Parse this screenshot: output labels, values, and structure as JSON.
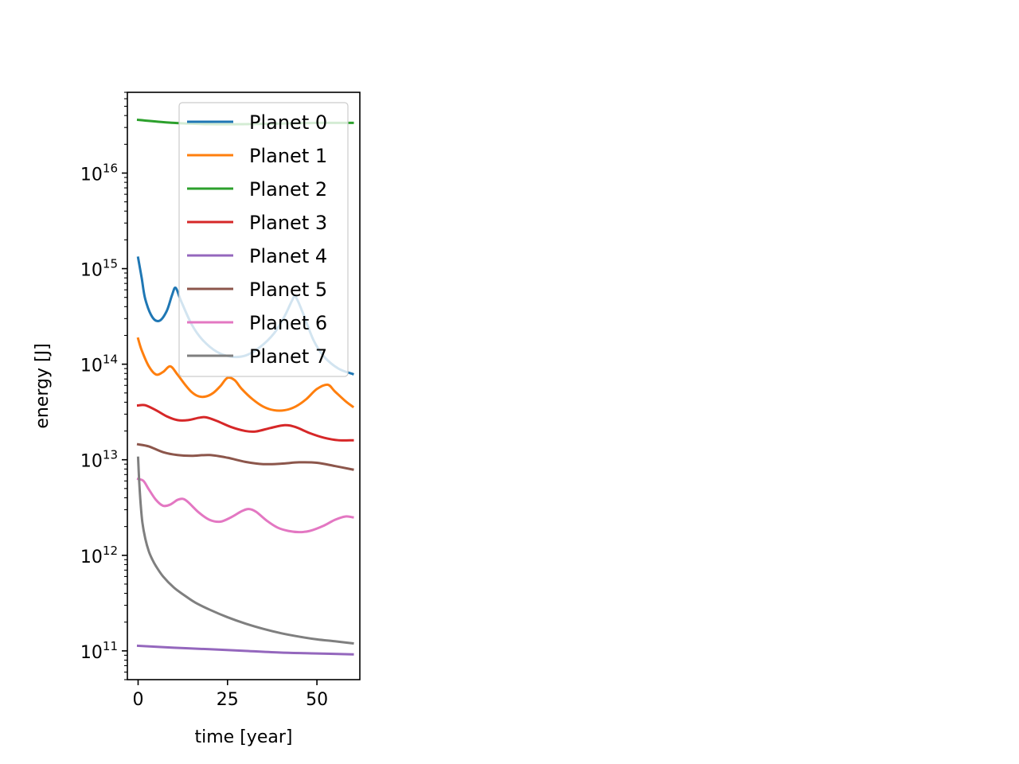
{
  "chart_data": {
    "type": "line",
    "xlabel": "time [year]",
    "ylabel": "energy [J]",
    "xlim": [
      -3,
      62
    ],
    "ylim": [
      50000000000.0,
      7e+16
    ],
    "yscale": "log",
    "x_ticks": [
      0,
      25,
      50
    ],
    "y_ticks": [
      {
        "value": 100000000000.0,
        "base": "10",
        "exp": "11"
      },
      {
        "value": 1000000000000.0,
        "base": "10",
        "exp": "12"
      },
      {
        "value": 10000000000000.0,
        "base": "10",
        "exp": "13"
      },
      {
        "value": 100000000000000.0,
        "base": "10",
        "exp": "14"
      },
      {
        "value": 1000000000000000.0,
        "base": "10",
        "exp": "15"
      },
      {
        "value": 1e+16,
        "base": "10",
        "exp": "16"
      }
    ],
    "grid": false,
    "legend_position": "top-right",
    "series": [
      {
        "name": "Planet 0",
        "color": "#1f77b4",
        "points": [
          [
            0,
            1300000000000000.0
          ],
          [
            1,
            800000000000000.0
          ],
          [
            2,
            480000000000000.0
          ],
          [
            4,
            310000000000000.0
          ],
          [
            6,
            285000000000000.0
          ],
          [
            8,
            360000000000000.0
          ],
          [
            9.5,
            530000000000000.0
          ],
          [
            10.5,
            630000000000000.0
          ],
          [
            12,
            460000000000000.0
          ],
          [
            15,
            260000000000000.0
          ],
          [
            18,
            180000000000000.0
          ],
          [
            22,
            135000000000000.0
          ],
          [
            26,
            120000000000000.0
          ],
          [
            30,
            123000000000000.0
          ],
          [
            34,
            150000000000000.0
          ],
          [
            38,
            210000000000000.0
          ],
          [
            41,
            320000000000000.0
          ],
          [
            43,
            460000000000000.0
          ],
          [
            44,
            510000000000000.0
          ],
          [
            46,
            350000000000000.0
          ],
          [
            49,
            180000000000000.0
          ],
          [
            52,
            120000000000000.0
          ],
          [
            56,
            90000000000000.0
          ],
          [
            60,
            79000000000000.0
          ]
        ]
      },
      {
        "name": "Planet 1",
        "color": "#ff7f0e",
        "points": [
          [
            0,
            185000000000000.0
          ],
          [
            1,
            140000000000000.0
          ],
          [
            3,
            95000000000000.0
          ],
          [
            5,
            78000000000000.0
          ],
          [
            7,
            83000000000000.0
          ],
          [
            9,
            95000000000000.0
          ],
          [
            11,
            78000000000000.0
          ],
          [
            13,
            62000000000000.0
          ],
          [
            15,
            51000000000000.0
          ],
          [
            17,
            46000000000000.0
          ],
          [
            19,
            46000000000000.0
          ],
          [
            21,
            50000000000000.0
          ],
          [
            23,
            59000000000000.0
          ],
          [
            25,
            72000000000000.0
          ],
          [
            27,
            68000000000000.0
          ],
          [
            29,
            55000000000000.0
          ],
          [
            32,
            43000000000000.0
          ],
          [
            35,
            36000000000000.0
          ],
          [
            38,
            33000000000000.0
          ],
          [
            41,
            33000000000000.0
          ],
          [
            44,
            36000000000000.0
          ],
          [
            47,
            43000000000000.0
          ],
          [
            50,
            55000000000000.0
          ],
          [
            53,
            61000000000000.0
          ],
          [
            55,
            52000000000000.0
          ],
          [
            58,
            41000000000000.0
          ],
          [
            60,
            36000000000000.0
          ]
        ]
      },
      {
        "name": "Planet 2",
        "color": "#2ca02c",
        "points": [
          [
            0,
            3.6e+16
          ],
          [
            10,
            3.35e+16
          ],
          [
            20,
            3.25e+16
          ],
          [
            30,
            3.25e+16
          ],
          [
            40,
            3.3e+16
          ],
          [
            50,
            3.35e+16
          ],
          [
            60,
            3.35e+16
          ]
        ]
      },
      {
        "name": "Planet 3",
        "color": "#d62728",
        "points": [
          [
            0,
            37000000000000.0
          ],
          [
            2,
            37200000000000.0
          ],
          [
            5,
            33000000000000.0
          ],
          [
            8,
            28500000000000.0
          ],
          [
            11,
            26000000000000.0
          ],
          [
            14,
            26000000000000.0
          ],
          [
            17,
            27500000000000.0
          ],
          [
            19,
            27800000000000.0
          ],
          [
            22,
            25500000000000.0
          ],
          [
            26,
            22000000000000.0
          ],
          [
            30,
            20000000000000.0
          ],
          [
            33,
            19800000000000.0
          ],
          [
            37,
            21500000000000.0
          ],
          [
            41,
            23000000000000.0
          ],
          [
            44,
            22000000000000.0
          ],
          [
            48,
            19000000000000.0
          ],
          [
            52,
            17000000000000.0
          ],
          [
            56,
            16000000000000.0
          ],
          [
            60,
            16000000000000.0
          ]
        ]
      },
      {
        "name": "Planet 4",
        "color": "#9467bd",
        "points": [
          [
            0,
            113000000000.0
          ],
          [
            10,
            108000000000.0
          ],
          [
            20,
            104000000000.0
          ],
          [
            30,
            100000000000.0
          ],
          [
            40,
            96000000000.0
          ],
          [
            50,
            94000000000.0
          ],
          [
            60,
            92000000000.0
          ]
        ]
      },
      {
        "name": "Planet 5",
        "color": "#8c564b",
        "points": [
          [
            0,
            14500000000000.0
          ],
          [
            3,
            13800000000000.0
          ],
          [
            7,
            12000000000000.0
          ],
          [
            11,
            11200000000000.0
          ],
          [
            15,
            11000000000000.0
          ],
          [
            20,
            11200000000000.0
          ],
          [
            25,
            10500000000000.0
          ],
          [
            30,
            9500000000000.0
          ],
          [
            35,
            9000000000000.0
          ],
          [
            40,
            9100000000000.0
          ],
          [
            45,
            9400000000000.0
          ],
          [
            50,
            9300000000000.0
          ],
          [
            55,
            8600000000000.0
          ],
          [
            60,
            7900000000000.0
          ]
        ]
      },
      {
        "name": "Planet 6",
        "color": "#e377c2",
        "points": [
          [
            0,
            6300000000000.0
          ],
          [
            1.5,
            6000000000000.0
          ],
          [
            3,
            4900000000000.0
          ],
          [
            5,
            3800000000000.0
          ],
          [
            7,
            3300000000000.0
          ],
          [
            9,
            3400000000000.0
          ],
          [
            11,
            3800000000000.0
          ],
          [
            12.5,
            3900000000000.0
          ],
          [
            14,
            3600000000000.0
          ],
          [
            17,
            2800000000000.0
          ],
          [
            20,
            2350000000000.0
          ],
          [
            23,
            2250000000000.0
          ],
          [
            26,
            2500000000000.0
          ],
          [
            29,
            2900000000000.0
          ],
          [
            31,
            3050000000000.0
          ],
          [
            33,
            2850000000000.0
          ],
          [
            36,
            2300000000000.0
          ],
          [
            39,
            1950000000000.0
          ],
          [
            42,
            1800000000000.0
          ],
          [
            45,
            1750000000000.0
          ],
          [
            48,
            1800000000000.0
          ],
          [
            52,
            2050000000000.0
          ],
          [
            55,
            2350000000000.0
          ],
          [
            58,
            2550000000000.0
          ],
          [
            60,
            2500000000000.0
          ]
        ]
      },
      {
        "name": "Planet 7",
        "color": "#7f7f7f",
        "points": [
          [
            0,
            10500000000000.0
          ],
          [
            0.3,
            6000000000000.0
          ],
          [
            0.7,
            3500000000000.0
          ],
          [
            1.2,
            2200000000000.0
          ],
          [
            2,
            1500000000000.0
          ],
          [
            3,
            1100000000000.0
          ],
          [
            4,
            900000000000.0
          ],
          [
            5,
            770000000000.0
          ],
          [
            7,
            600000000000.0
          ],
          [
            10,
            460000000000.0
          ],
          [
            13,
            380000000000.0
          ],
          [
            16,
            320000000000.0
          ],
          [
            20,
            270000000000.0
          ],
          [
            25,
            225000000000.0
          ],
          [
            30,
            193000000000.0
          ],
          [
            35,
            170000000000.0
          ],
          [
            40,
            153000000000.0
          ],
          [
            45,
            141000000000.0
          ],
          [
            50,
            132000000000.0
          ],
          [
            55,
            126000000000.0
          ],
          [
            60,
            120000000000.0
          ]
        ]
      }
    ]
  }
}
